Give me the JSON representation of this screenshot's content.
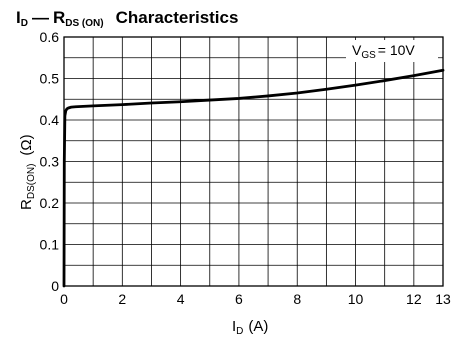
{
  "chart_data": {
    "type": "line",
    "title": {
      "main_left": "I",
      "main_left_sub": "D",
      "dash": "—",
      "main_right": "R",
      "main_right_sub": "DS (ON)",
      "suffix": "Characteristics"
    },
    "xlabel": {
      "base": "I",
      "sub": "D",
      "unit": "(A)"
    },
    "ylabel": {
      "base": "R",
      "sub": "DS(ON)",
      "unit": "(Ω)"
    },
    "xlim": [
      0,
      13
    ],
    "ylim": [
      0,
      0.6
    ],
    "x_ticks": [
      "0",
      "2",
      "4",
      "6",
      "8",
      "10",
      "12",
      "13"
    ],
    "y_ticks": [
      "0",
      "0.1",
      "0.2",
      "0.3",
      "0.4",
      "0.5",
      "0.6"
    ],
    "grid": true,
    "annotation": {
      "base": "V",
      "sub": "GS",
      "text": "= 10V"
    },
    "series": [
      {
        "line_color": "#000000",
        "x": [
          0,
          0.01,
          0.03,
          0.06,
          0.1,
          0.15,
          0.25,
          0.4,
          1,
          2,
          3,
          4,
          5,
          6,
          7,
          8,
          9,
          10,
          11,
          12,
          13
        ],
        "y": [
          0,
          0.3,
          0.41,
          0.422,
          0.427,
          0.429,
          0.431,
          0.432,
          0.434,
          0.437,
          0.441,
          0.444,
          0.448,
          0.452,
          0.458,
          0.465,
          0.474,
          0.484,
          0.495,
          0.507,
          0.52
        ]
      }
    ]
  }
}
